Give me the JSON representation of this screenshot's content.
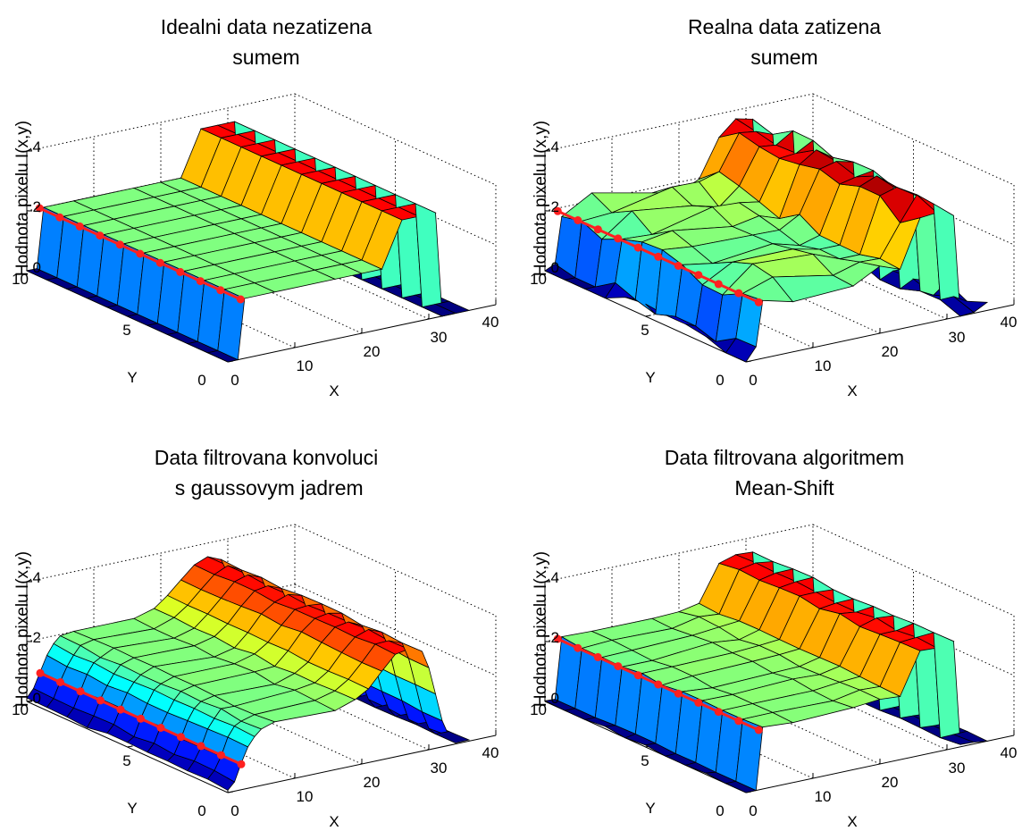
{
  "figure": {
    "background": "#ffffff",
    "highlight_color": "#ff2020",
    "colormap": "jet"
  },
  "chart_data": [
    {
      "type": "surface",
      "panel": "idealni",
      "title_lines": [
        "Idealni data nezatizena",
        "sumem"
      ],
      "xlabel": "X",
      "ylabel": "Y",
      "zlabel": "Hodnota pixelu I(x,y)",
      "xlim": [
        0,
        40
      ],
      "ylim": [
        0,
        10
      ],
      "zlim": [
        0,
        4
      ],
      "x_ticks": [
        "0",
        "10",
        "20",
        "30",
        "40"
      ],
      "y_ticks": [
        "0",
        "5",
        "10"
      ],
      "z_ticks": [
        "0",
        "2",
        "4"
      ],
      "grid": true,
      "x": [
        0,
        1.5,
        2.5,
        7,
        16,
        20,
        23,
        26,
        28.5,
        31,
        32,
        34,
        36
      ],
      "z": [
        0,
        0,
        2,
        2,
        2,
        2,
        2,
        3.5,
        3.5,
        3.5,
        0,
        0,
        0
      ],
      "noise": 0,
      "highlight_row": {
        "x": 1.9,
        "z": 2.0
      }
    },
    {
      "type": "surface",
      "panel": "realna",
      "title_lines": [
        "Realna data zatizena",
        "sumem"
      ],
      "xlabel": "X",
      "ylabel": "Y",
      "zlabel": "Hodnota pixelu I(x,y)",
      "xlim": [
        0,
        40
      ],
      "ylim": [
        0,
        10
      ],
      "zlim": [
        0,
        4
      ],
      "x_ticks": [
        "0",
        "10",
        "20",
        "30",
        "40"
      ],
      "y_ticks": [
        "0",
        "5",
        "10"
      ],
      "z_ticks": [
        "0",
        "2",
        "4"
      ],
      "grid": true,
      "x": [
        0,
        1.5,
        2.5,
        7,
        16,
        20,
        23,
        26,
        28.5,
        31,
        32,
        34,
        36
      ],
      "z": [
        0.1,
        0.1,
        1.85,
        2.0,
        2.1,
        2.0,
        2.2,
        3.4,
        3.6,
        3.5,
        0.1,
        0,
        0
      ],
      "noise": 0.35,
      "highlight_row": {
        "x": 1.9,
        "z": 1.9
      }
    },
    {
      "type": "surface",
      "panel": "gauss",
      "title_lines": [
        "Data filtrovana konvoluci",
        " s gaussovym jadrem"
      ],
      "xlabel": "X",
      "ylabel": "Y",
      "zlabel": "Hodnota pixelu I(x,y)",
      "xlim": [
        0,
        40
      ],
      "ylim": [
        0,
        10
      ],
      "zlim": [
        0,
        4
      ],
      "x_ticks": [
        "0",
        "10",
        "20",
        "30",
        "40"
      ],
      "y_ticks": [
        "0",
        "5",
        "10"
      ],
      "z_ticks": [
        "0",
        "2",
        "4"
      ],
      "grid": true,
      "x": [
        0,
        1,
        2,
        3,
        4,
        5,
        7,
        16,
        19,
        21,
        23,
        25,
        27,
        29,
        30,
        31,
        32,
        33,
        34,
        36
      ],
      "z": [
        0.1,
        0.35,
        0.85,
        1.35,
        1.7,
        1.9,
        2.0,
        2.0,
        2.15,
        2.5,
        3.0,
        3.4,
        3.5,
        3.35,
        2.8,
        1.8,
        0.9,
        0.3,
        0,
        0
      ],
      "noise": 0.06,
      "highlight_row": {
        "x": 2.0,
        "z": 0.85
      }
    },
    {
      "type": "surface",
      "panel": "meanshift",
      "title_lines": [
        "Data filtrovana algoritmem",
        "Mean-Shift"
      ],
      "xlabel": "X",
      "ylabel": "Y",
      "zlabel": "Hodnota pixelu I(x,y)",
      "xlim": [
        0,
        40
      ],
      "ylim": [
        0,
        10
      ],
      "zlim": [
        0,
        4
      ],
      "x_ticks": [
        "0",
        "10",
        "20",
        "30",
        "40"
      ],
      "y_ticks": [
        "0",
        "5",
        "10"
      ],
      "z_ticks": [
        "0",
        "2",
        "4"
      ],
      "grid": true,
      "x": [
        0,
        1.5,
        2.5,
        7,
        16,
        20,
        23,
        26,
        28.5,
        31,
        32,
        34,
        36
      ],
      "z": [
        0,
        0,
        2,
        2,
        2.05,
        2.1,
        2.15,
        3.45,
        3.5,
        3.5,
        0,
        0,
        0
      ],
      "noise": 0.08,
      "highlight_row": {
        "x": 1.9,
        "z": 2.0
      }
    }
  ]
}
